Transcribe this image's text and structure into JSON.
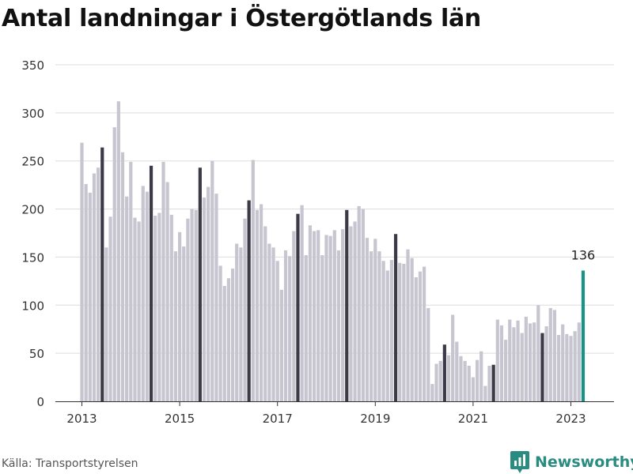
{
  "title": "Antal landningar i Östergötlands län",
  "source": "Källa: Transportstyrelsen",
  "brand": {
    "name": "Newsworthy",
    "icon": "newsworthy-logo-icon"
  },
  "colors": {
    "bar": "#c6c5d0",
    "highlight": "#3b3a46",
    "latest": "#199384",
    "grid": "#dddddd",
    "axis": "#333333"
  },
  "chart_data": {
    "type": "bar",
    "title": "Antal landningar i Östergötlands län",
    "xlabel": "",
    "ylabel": "",
    "ylim": [
      0,
      350
    ],
    "yticks": [
      "0",
      "50",
      "100",
      "150",
      "200",
      "250",
      "300",
      "350"
    ],
    "xticks": [
      "2013",
      "2015",
      "2017",
      "2019",
      "2021",
      "2023"
    ],
    "grid": true,
    "start_month": "2013-01",
    "highlight_month": "June",
    "latest_label": "136",
    "values": [
      269,
      226,
      217,
      237,
      243,
      264,
      160,
      192,
      285,
      312,
      259,
      213,
      249,
      191,
      187,
      224,
      218,
      245,
      193,
      196,
      249,
      228,
      194,
      156,
      176,
      161,
      190,
      200,
      199,
      243,
      212,
      223,
      250,
      216,
      141,
      120,
      128,
      138,
      164,
      160,
      190,
      209,
      251,
      199,
      205,
      182,
      164,
      160,
      146,
      116,
      157,
      151,
      177,
      195,
      204,
      152,
      183,
      177,
      178,
      152,
      173,
      172,
      178,
      157,
      179,
      199,
      182,
      187,
      203,
      200,
      170,
      156,
      169,
      156,
      146,
      136,
      147,
      174,
      144,
      143,
      158,
      149,
      129,
      135,
      140,
      97,
      18,
      39,
      42,
      59,
      48,
      90,
      62,
      47,
      42,
      37,
      25,
      43,
      52,
      16,
      37,
      38,
      85,
      79,
      64,
      85,
      77,
      84,
      71,
      88,
      81,
      82,
      100,
      71,
      78,
      97,
      95,
      69,
      80,
      70,
      68,
      73,
      82,
      136
    ]
  }
}
